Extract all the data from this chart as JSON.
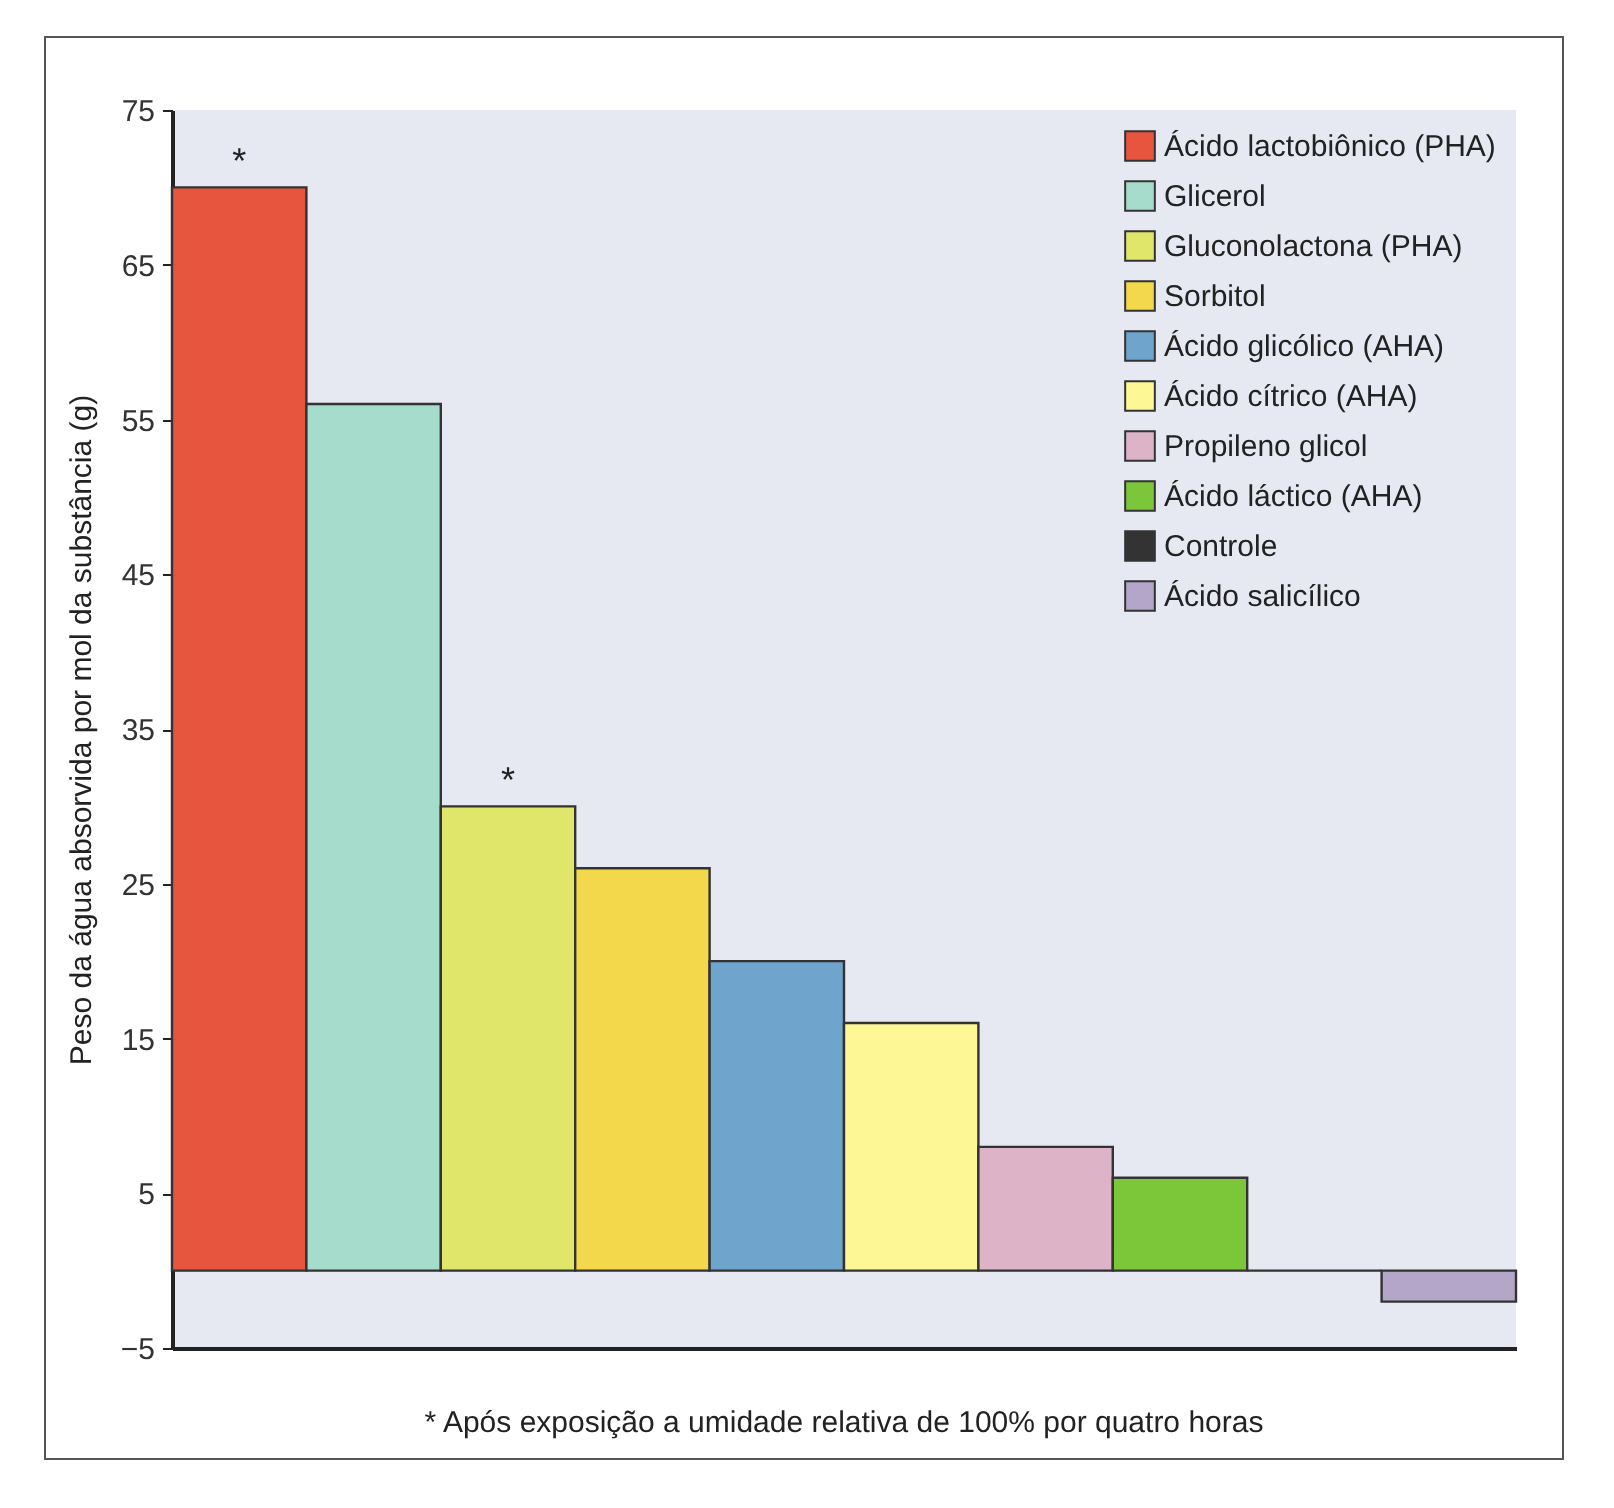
{
  "chart_data": {
    "type": "bar",
    "ylabel": "Peso da água absorvida por mol da substância (g)",
    "categories": [
      null,
      null,
      null,
      null,
      null,
      null,
      null,
      null,
      null,
      null
    ],
    "series": [
      {
        "name": "Ácido lactobiônico (PHA)",
        "color": "#e8553f",
        "values": [
          70,
          null,
          null,
          null,
          null,
          null,
          null,
          null,
          null,
          null
        ]
      },
      {
        "name": "Glicerol",
        "color": "#a6dccb",
        "values": [
          null,
          56,
          null,
          null,
          null,
          null,
          null,
          null,
          null,
          null
        ]
      },
      {
        "name": "Gluconolactona (PHA)",
        "color": "#dfe66a",
        "values": [
          null,
          null,
          30,
          null,
          null,
          null,
          null,
          null,
          null,
          null
        ]
      },
      {
        "name": "Sorbitol",
        "color": "#f2d84a",
        "values": [
          null,
          null,
          null,
          26,
          null,
          null,
          null,
          null,
          null,
          null
        ]
      },
      {
        "name": "Ácido glicólico (AHA)",
        "color": "#6fa4cc",
        "values": [
          null,
          null,
          null,
          null,
          20,
          null,
          null,
          null,
          null,
          null
        ]
      },
      {
        "name": "Ácido cítrico (AHA)",
        "color": "#fdf796",
        "values": [
          null,
          null,
          null,
          null,
          null,
          16,
          null,
          null,
          null,
          null
        ]
      },
      {
        "name": "Propileno glicol",
        "color": "#ddb3c8",
        "values": [
          null,
          null,
          null,
          null,
          null,
          null,
          8,
          null,
          null,
          null
        ]
      },
      {
        "name": "Ácido láctico (AHA)",
        "color": "#7cc63a",
        "values": [
          null,
          null,
          null,
          null,
          null,
          null,
          null,
          6,
          null,
          null
        ]
      },
      {
        "name": "Controle",
        "color": "#333333",
        "values": [
          null,
          null,
          null,
          null,
          null,
          null,
          null,
          null,
          0,
          null
        ]
      },
      {
        "name": "Ácido salicílico",
        "color": "#b3a6c8",
        "values": [
          null,
          null,
          null,
          null,
          null,
          null,
          null,
          null,
          null,
          -2
        ]
      }
    ],
    "ylim": [
      -5,
      75
    ],
    "yticks": [
      -5,
      5,
      15,
      25,
      35,
      45,
      55,
      65,
      75
    ],
    "grid": false,
    "legend": "top right",
    "tick_labels": "y",
    "annotations": [
      {
        "text": "*",
        "y": 70
      },
      {
        "text": "*",
        "y": 30
      },
      "* Após exposição a umidade relativa de 100% por quatro horas"
    ]
  }
}
